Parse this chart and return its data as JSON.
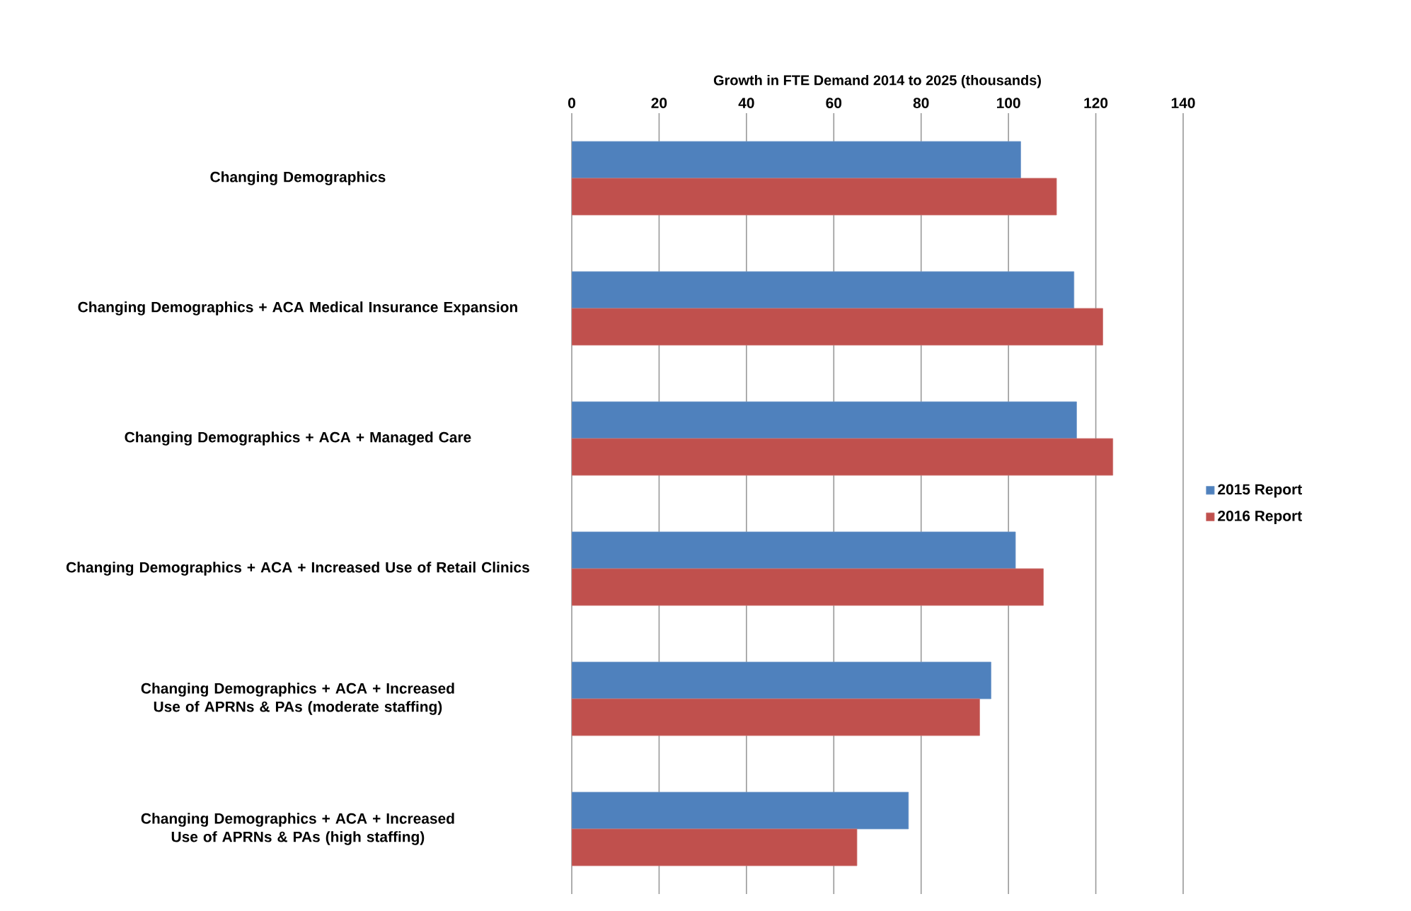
{
  "chart_data": {
    "type": "bar",
    "orientation": "horizontal",
    "xlabel": "Growth in FTE Demand 2014 to 2025 (thousands)",
    "categories": [
      "Changing Demographics",
      "Changing Demographics + ACA Medical Insurance Expansion",
      "Changing Demographics + ACA + Managed Care",
      "Changing Demographics + ACA + Increased Use of Retail Clinics",
      "Changing Demographics + ACA + Increased Use of APRNs & PAs (moderate staffing)",
      "Changing Demographics + ACA + Increased Use of APRNs & PAs (high staffing)"
    ],
    "series": [
      {
        "name": "2015 Report",
        "color": "#4f81bd",
        "values": [
          102.8,
          115.0,
          115.6,
          101.6,
          96.0,
          77.1
        ]
      },
      {
        "name": "2016 Report",
        "color": "#c0504d",
        "values": [
          111.0,
          121.6,
          123.9,
          108.0,
          93.4,
          65.3
        ]
      }
    ],
    "xlim": [
      0,
      140
    ],
    "xticks": [
      0,
      20,
      40,
      60,
      80,
      100,
      120,
      140
    ],
    "grid": "x",
    "legend": "right"
  }
}
